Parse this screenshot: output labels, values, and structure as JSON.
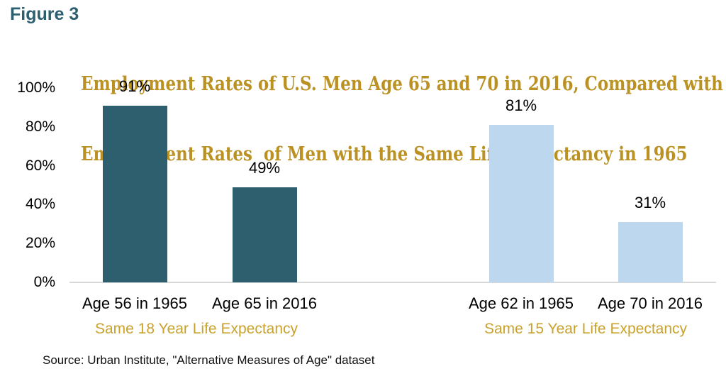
{
  "figure_label": "Figure 3",
  "title": {
    "line1": "Employment Rates of U.S. Men Age 65 and 70 in 2016, Compared with",
    "line2": "Employment Rates  of Men with the Same Life Expectancy in 1965"
  },
  "source": "Source: Urban Institute, \"Alternative Measures of Age\" dataset",
  "colors": {
    "figure_label": "#2E5F70",
    "title_gold": "#BA9122",
    "group_label_gold": "#C9A22C",
    "dark_teal_bar": "#2E5F6F",
    "light_blue_bar": "#BDD7EE",
    "axis_line": "#D9D9D9",
    "text": "#000000"
  },
  "chart_data": {
    "type": "bar",
    "title": "Employment Rates of U.S. Men Age 65 and 70 in 2016, Compared with Employment Rates of Men with the Same Life Expectancy in 1965",
    "categories": [
      "Age 56 in 1965",
      "Age 65 in 2016",
      "Age 62 in 1965",
      "Age 70 in 2016"
    ],
    "values": [
      91,
      49,
      81,
      31
    ],
    "data_labels": [
      "91%",
      "49%",
      "81%",
      "31%"
    ],
    "bar_colors": [
      "#2E5F6F",
      "#2E5F6F",
      "#BDD7EE",
      "#BDD7EE"
    ],
    "groups": [
      {
        "label": "Same 18 Year Life Expectancy",
        "categories": [
          "Age 56 in 1965",
          "Age 65 in 2016"
        ]
      },
      {
        "label": "Same 15 Year Life Expectancy",
        "categories": [
          "Age 62 in 1965",
          "Age 70 in 2016"
        ]
      }
    ],
    "xlabel": "",
    "ylabel": "",
    "ylim": [
      0,
      100
    ],
    "y_ticks": [
      {
        "value": 100,
        "label": "100%"
      },
      {
        "value": 80,
        "label": "80%"
      },
      {
        "value": 60,
        "label": "60%"
      },
      {
        "value": 40,
        "label": "40%"
      },
      {
        "value": 20,
        "label": "20%"
      },
      {
        "value": 0,
        "label": "0%"
      }
    ],
    "grid": false,
    "legend": "none"
  }
}
